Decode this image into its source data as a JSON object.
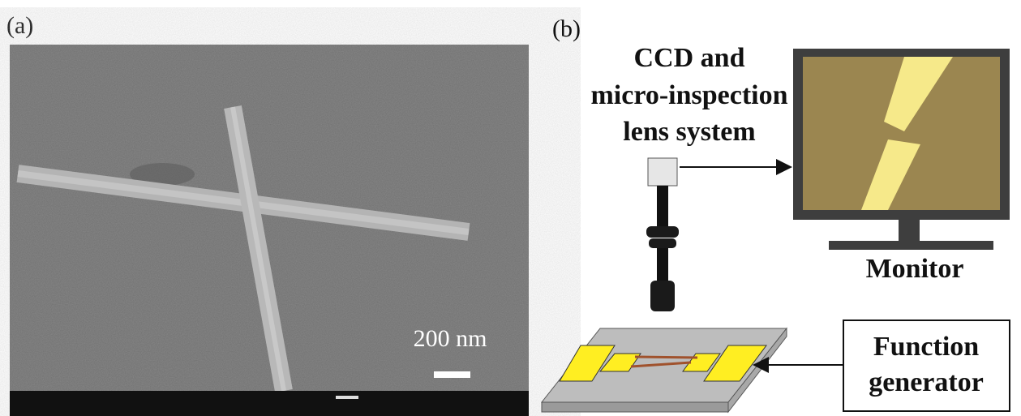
{
  "panels": {
    "a": {
      "label": "(a)",
      "scale_bar": "200 nm"
    },
    "b": {
      "label": "(b)",
      "camera": [
        "CCD and",
        "micro-inspection",
        "lens system"
      ],
      "monitor": "Monitor",
      "generator": [
        "Function",
        "generator"
      ]
    }
  }
}
